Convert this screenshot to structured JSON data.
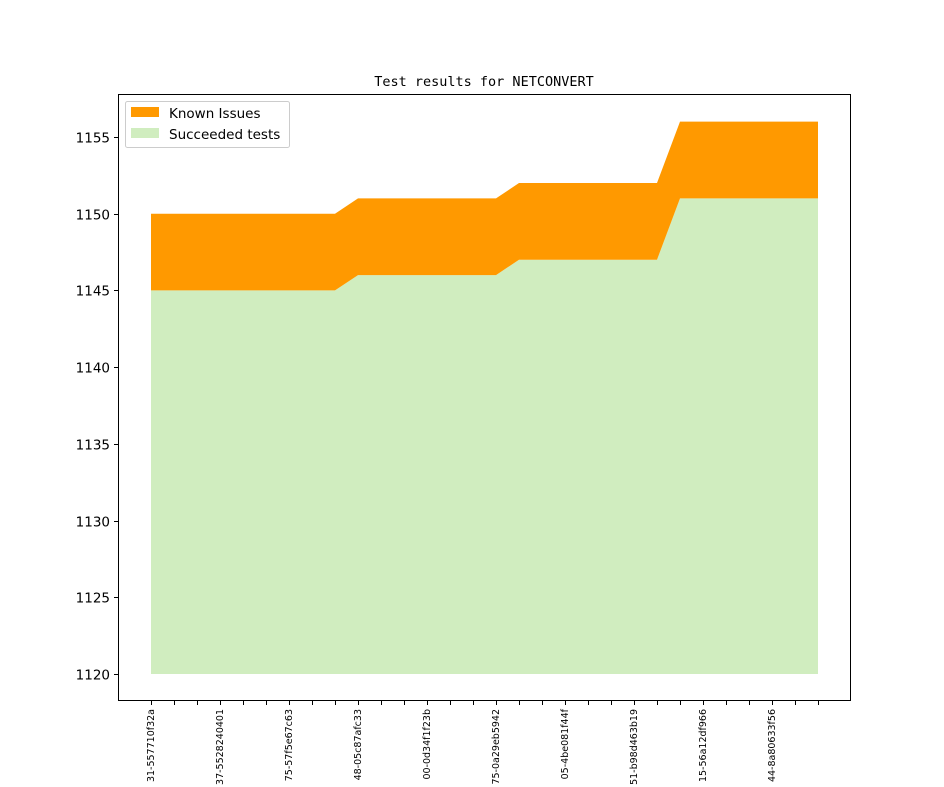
{
  "chart_data": {
    "type": "area",
    "title": "Test results for NETCONVERT",
    "xlabel": "",
    "ylabel": "",
    "ylim": [
      1118.3,
      1157.7
    ],
    "yticks": [
      1120,
      1125,
      1130,
      1135,
      1140,
      1145,
      1150,
      1155
    ],
    "n_points": 30,
    "x_tick_labels": [
      {
        "index": 0,
        "label": "31-557710f32a"
      },
      {
        "index": 3,
        "label": "37-5528240401"
      },
      {
        "index": 6,
        "label": "75-57f5e67c63"
      },
      {
        "index": 9,
        "label": "48-05c87afc33"
      },
      {
        "index": 12,
        "label": "00-0d34f1f23b"
      },
      {
        "index": 15,
        "label": "75-0a29eb5942"
      },
      {
        "index": 18,
        "label": "05-4be081f44f"
      },
      {
        "index": 21,
        "label": "51-b98d463b19"
      },
      {
        "index": 24,
        "label": "15-56a12df966"
      },
      {
        "index": 27,
        "label": "44-8a80633f56"
      }
    ],
    "baseline": 1120,
    "series": [
      {
        "name": "Succeeded tests",
        "color": "#d0edbf",
        "values": [
          1145,
          1145,
          1145,
          1145,
          1145,
          1145,
          1145,
          1145,
          1145,
          1146,
          1146,
          1146,
          1146,
          1146,
          1146,
          1146,
          1147,
          1147,
          1147,
          1147,
          1147,
          1147,
          1147,
          1151,
          1151,
          1151,
          1151,
          1151,
          1151,
          1151
        ]
      },
      {
        "name": "Known Issues",
        "color": "#ff9900",
        "values": [
          5,
          5,
          5,
          5,
          5,
          5,
          5,
          5,
          5,
          5,
          5,
          5,
          5,
          5,
          5,
          5,
          5,
          5,
          5,
          5,
          5,
          5,
          5,
          5,
          5,
          5,
          5,
          5,
          5,
          5
        ]
      }
    ],
    "legend": {
      "placement": "top-left",
      "entries": [
        "Known Issues",
        "Succeeded tests"
      ]
    },
    "grid": false
  }
}
